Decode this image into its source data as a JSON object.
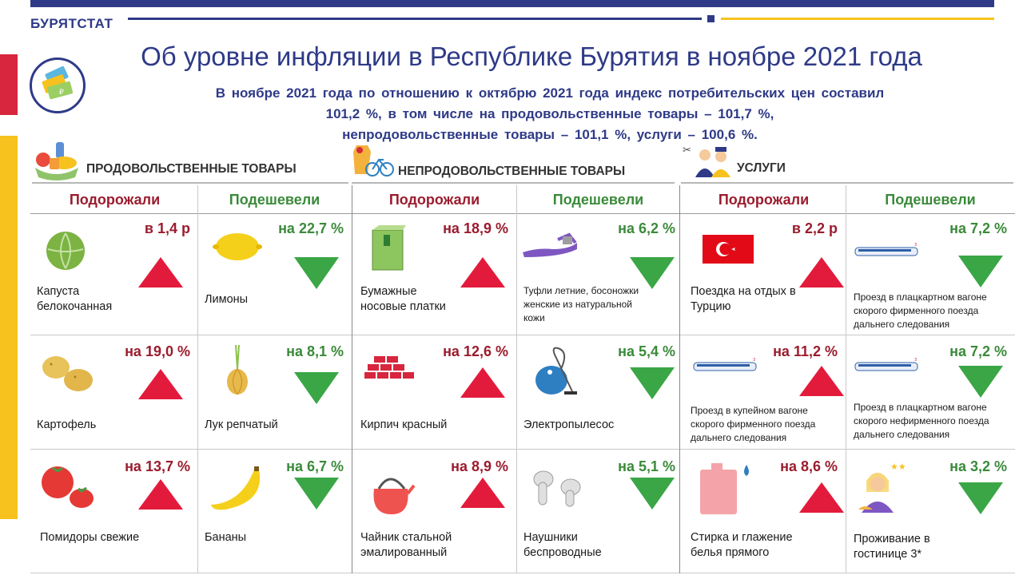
{
  "header": {
    "brand": "БУРЯТСТАТ",
    "title": "Об уровне инфляции в Республике Бурятия в ноябре 2021 года"
  },
  "summary": {
    "line1": "В ноябре 2021 года по отношению к октябрю 2021 года индекс потребительских цен составил",
    "line2": "101,2 %, в том числе на продовольственные товары – 101,7 %,",
    "line3": "непродовольственные товары – 101,1 %, услуги – 100,6 %."
  },
  "colors": {
    "accent": "#2e3a87",
    "yellow": "#f7c21e",
    "up": "#e21b3c",
    "down": "#3aa646"
  },
  "sections": [
    {
      "title": "ПРОДОВОЛЬСТВЕННЫЕ ТОВАРЫ",
      "icon": "grocery-icon"
    },
    {
      "title": "НЕПРОДОВОЛЬСТВЕННЫЕ ТОВАРЫ",
      "icon": "clothes-bicycle-icon"
    },
    {
      "title": "УСЛУГИ",
      "icon": "service-workers-icon"
    }
  ],
  "columns": [
    "Подорожали",
    "Подешевели",
    "Подорожали",
    "Подешевели",
    "Подорожали",
    "Подешевели"
  ],
  "rows": [
    [
      {
        "value": "в 1,4 р",
        "label": "Капуста белокочанная",
        "dir": "up",
        "icon": "cabbage-icon"
      },
      {
        "value": "на 22,7 %",
        "label": "Лимоны",
        "dir": "down",
        "icon": "lemon-icon"
      },
      {
        "value": "на 18,9 %",
        "label": "Бумажные носовые платки",
        "dir": "up",
        "icon": "tissue-box-icon"
      },
      {
        "value": "на 6,2 %",
        "label": "Туфли летние, босоножки женские из натуральной кожи",
        "dir": "down",
        "icon": "sandal-icon"
      },
      {
        "value": "в 2,2 р",
        "label": "Поездка на отдых в Турцию",
        "dir": "up",
        "icon": "turkey-flag-icon"
      },
      {
        "value": "на 7,2 %",
        "label": "Проезд в плацкартном вагоне скорого фирменного поезда дальнего следования",
        "dir": "down",
        "icon": "train-icon"
      }
    ],
    [
      {
        "value": "на 19,0 %",
        "label": "Картофель",
        "dir": "up",
        "icon": "potato-icon"
      },
      {
        "value": "на 8,1 %",
        "label": "Лук репчатый",
        "dir": "down",
        "icon": "onion-icon"
      },
      {
        "value": "на 12,6 %",
        "label": "Кирпич красный",
        "dir": "up",
        "icon": "bricks-icon"
      },
      {
        "value": "на 5,4 %",
        "label": "Электропылесос",
        "dir": "down",
        "icon": "vacuum-cleaner-icon"
      },
      {
        "value": "на 11,2 %",
        "label": "Проезд в купейном вагоне скорого фирменного поезда дальнего следования",
        "dir": "up",
        "icon": "train-icon"
      },
      {
        "value": "на 7,2 %",
        "label": "Проезд в плацкартном вагоне скорого нефирменного поезда дальнего следования",
        "dir": "down",
        "icon": "train-icon"
      }
    ],
    [
      {
        "value": "на 13,7 %",
        "label": "Помидоры свежие",
        "dir": "up",
        "icon": "tomato-icon"
      },
      {
        "value": "на 6,7 %",
        "label": "Бананы",
        "dir": "down",
        "icon": "banana-icon"
      },
      {
        "value": "на 8,9 %",
        "label": "Чайник стальной эмалированный",
        "dir": "up",
        "icon": "kettle-icon"
      },
      {
        "value": "на 5,1 %",
        "label": "Наушники беспроводные",
        "dir": "down",
        "icon": "earbuds-icon"
      },
      {
        "value": "на 8,6 %",
        "label": "Стирка и глажение белья прямого",
        "dir": "up",
        "icon": "detergent-icon"
      },
      {
        "value": "на 3,2 %",
        "label": "Проживание в гостинице 3*",
        "dir": "down",
        "icon": "hotel-receptionist-icon"
      }
    ]
  ]
}
